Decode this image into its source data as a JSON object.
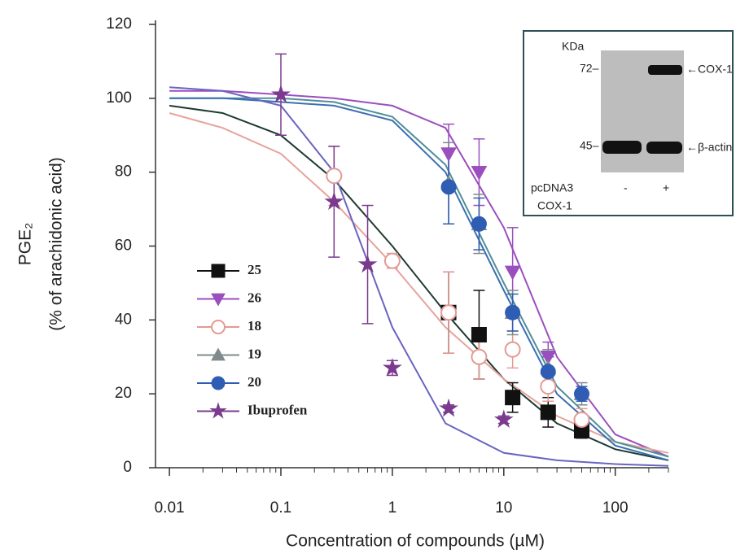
{
  "chart_data": {
    "type": "scatter",
    "xlabel": "Concentration of compounds (µM)",
    "ylabel_lines": [
      "PGE₂",
      "(% of arachidonic acid)"
    ],
    "xscale": "log",
    "xlim": [
      0.0075,
      300
    ],
    "ylim": [
      0,
      120
    ],
    "xticks": [
      0.01,
      0.1,
      1,
      10,
      100
    ],
    "xminorticks": [
      0.02,
      0.03,
      0.04,
      0.05,
      0.06,
      0.07,
      0.08,
      0.09,
      0.2,
      0.3,
      0.4,
      0.5,
      0.6,
      0.7,
      0.8,
      0.9,
      2,
      3,
      4,
      5,
      6,
      7,
      8,
      9,
      20,
      30,
      40,
      50,
      60,
      70,
      80,
      90,
      200,
      300
    ],
    "yticks": [
      0,
      20,
      40,
      60,
      80,
      100,
      120
    ],
    "legend": "center-left",
    "series": [
      {
        "name": "25",
        "color": "#111111",
        "curve_color": "#1f3a30",
        "marker": "square",
        "filled": true,
        "x": [
          3.2,
          6,
          12,
          25,
          50
        ],
        "values": [
          42,
          36,
          19,
          15,
          10
        ],
        "errors": [
          11,
          12,
          4,
          4,
          2
        ],
        "curve_x": [
          0.01,
          0.03,
          0.1,
          0.3,
          1,
          3,
          10,
          30,
          100,
          300
        ],
        "curve_y": [
          98,
          96,
          90,
          78,
          60,
          42,
          24,
          12,
          5,
          2
        ]
      },
      {
        "name": "26",
        "color": "#9b4fbf",
        "curve_color": "#9b4fbf",
        "marker": "triangle-down",
        "filled": true,
        "x": [
          3.2,
          6,
          12,
          25
        ],
        "values": [
          85,
          80,
          53,
          30
        ],
        "errors": [
          8,
          9,
          12,
          4
        ],
        "curve_x": [
          0.01,
          0.03,
          0.1,
          0.3,
          1,
          3,
          10,
          30,
          100,
          300
        ],
        "curve_y": [
          102,
          102,
          101,
          100,
          98,
          92,
          65,
          30,
          9,
          3
        ]
      },
      {
        "name": "18",
        "color": "#e49a94",
        "curve_color": "#e6a49c",
        "marker": "circle",
        "filled": false,
        "x": [
          0.3,
          1,
          3.2,
          6,
          12,
          25,
          50
        ],
        "values": [
          79,
          56,
          42,
          30,
          32,
          22,
          13
        ],
        "errors": [
          8,
          2,
          11,
          6,
          5,
          4,
          3
        ],
        "curve_x": [
          0.01,
          0.03,
          0.1,
          0.3,
          1,
          3,
          10,
          30,
          100,
          300
        ],
        "curve_y": [
          96,
          92,
          85,
          72,
          55,
          38,
          24,
          14,
          7,
          4
        ]
      },
      {
        "name": "19",
        "color": "#808a8c",
        "curve_color": "#4f8f9a",
        "marker": "triangle-up",
        "filled": true,
        "x": [
          3.2,
          6,
          12,
          25,
          50
        ],
        "values": [
          77,
          66,
          42,
          27,
          20
        ],
        "errors": [
          11,
          8,
          6,
          5,
          3
        ],
        "curve_x": [
          0.01,
          0.03,
          0.1,
          0.3,
          1,
          3,
          10,
          30,
          100,
          300
        ],
        "curve_y": [
          100,
          100,
          100,
          99,
          95,
          82,
          50,
          22,
          7,
          3
        ]
      },
      {
        "name": "20",
        "color": "#2f5db3",
        "curve_color": "#3c6fb0",
        "marker": "circle",
        "filled": true,
        "x": [
          3.2,
          6,
          12,
          25,
          50
        ],
        "values": [
          76,
          66,
          42,
          26,
          20
        ],
        "errors": [
          10,
          7,
          5,
          4,
          2
        ],
        "curve_x": [
          0.01,
          0.03,
          0.1,
          0.3,
          1,
          3,
          10,
          30,
          100,
          300
        ],
        "curve_y": [
          100,
          100,
          99,
          98,
          94,
          80,
          48,
          20,
          6,
          2
        ]
      },
      {
        "name": "Ibuprofen",
        "color": "#7a3a8e",
        "curve_color": "#6a64c0",
        "marker": "star",
        "filled": true,
        "x": [
          0.1,
          0.3,
          0.6,
          1,
          3.2,
          10
        ],
        "values": [
          101,
          72,
          55,
          27,
          16,
          13
        ],
        "errors": [
          11,
          15,
          16,
          2,
          1,
          1
        ],
        "curve_x": [
          0.01,
          0.03,
          0.1,
          0.3,
          1,
          3,
          10,
          30,
          100,
          300
        ],
        "curve_y": [
          103,
          102,
          98,
          80,
          38,
          12,
          4,
          2,
          1,
          0.5
        ]
      }
    ],
    "inset": {
      "unit": "KDa",
      "markers": [
        "72–",
        "45–"
      ],
      "bands": [
        "←COX-1",
        "←β-actin"
      ],
      "rows": [
        "pcDNA3",
        "COX-1"
      ],
      "lanes": [
        "-",
        "+"
      ]
    }
  }
}
